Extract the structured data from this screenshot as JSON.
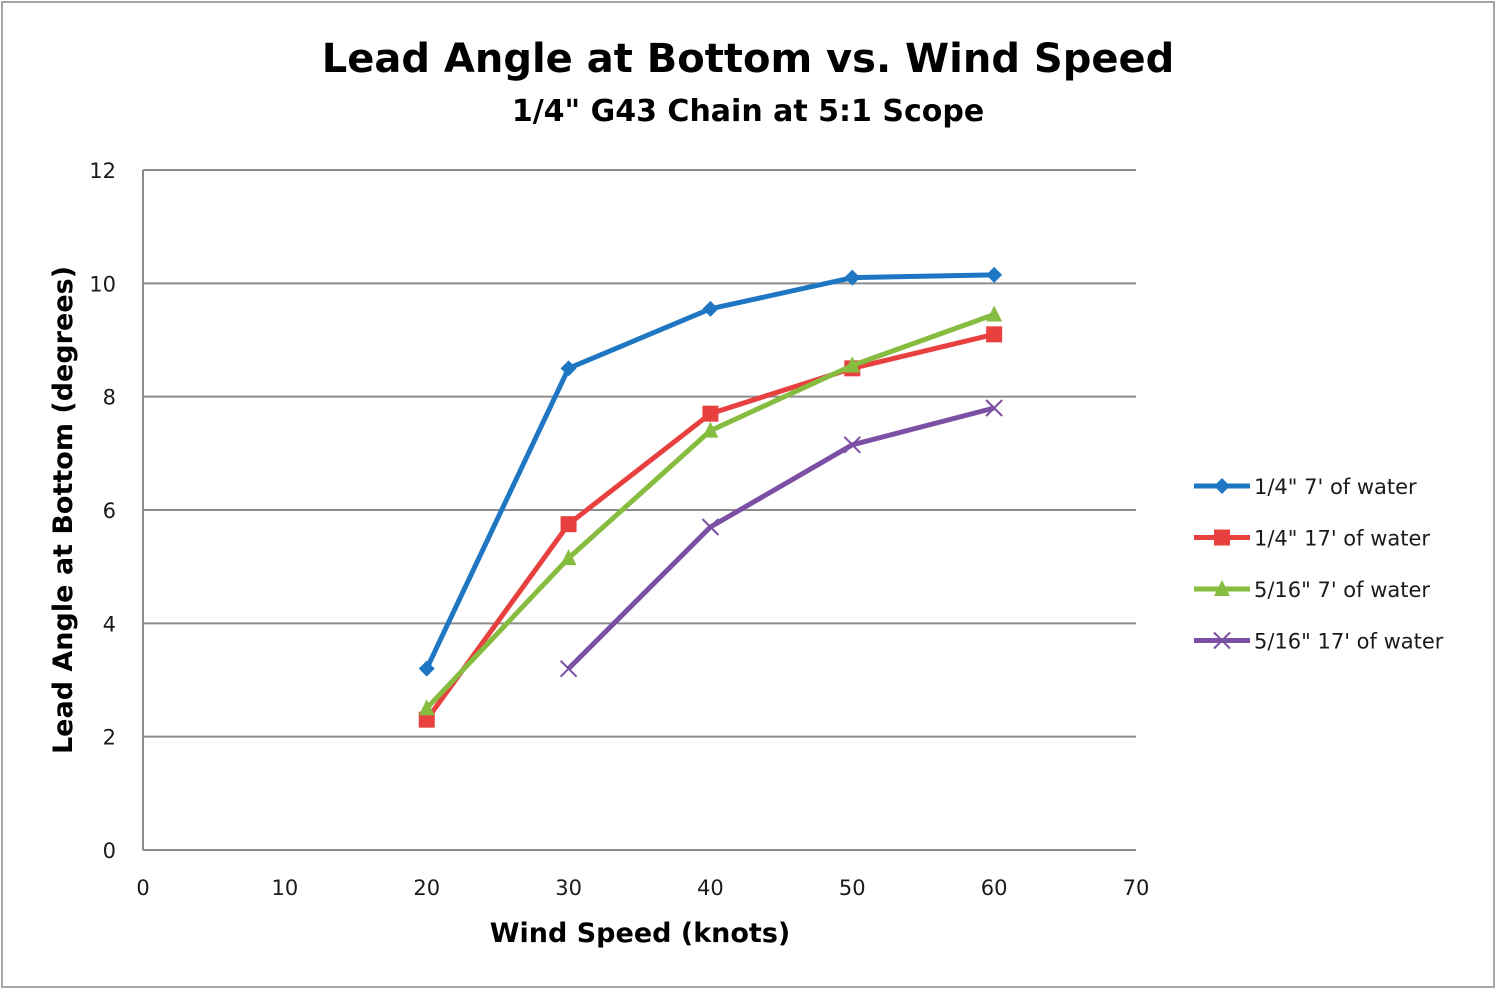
{
  "chart_data": {
    "type": "line",
    "title": "Lead Angle at Bottom vs. Wind Speed",
    "subtitle": "1/4\" G43 Chain at 5:1 Scope",
    "xlabel": "Wind Speed (knots)",
    "ylabel": "Lead Angle at Bottom (degrees)",
    "xlim": [
      0,
      70
    ],
    "ylim": [
      0,
      12
    ],
    "xticks": [
      0,
      10,
      20,
      30,
      40,
      50,
      60,
      70
    ],
    "yticks": [
      0,
      2,
      4,
      6,
      8,
      10,
      12
    ],
    "grid": "horizontal",
    "legend_position": "right",
    "series": [
      {
        "name": "1/4\" 7' of water",
        "color": "#1f77c4",
        "marker": "diamond",
        "x": [
          20,
          30,
          40,
          50,
          60
        ],
        "y": [
          3.2,
          8.5,
          9.55,
          10.1,
          10.15
        ]
      },
      {
        "name": "1/4\" 17' of water",
        "color": "#e8403f",
        "marker": "square",
        "x": [
          20,
          30,
          40,
          50,
          60
        ],
        "y": [
          2.3,
          5.75,
          7.7,
          8.5,
          9.1
        ]
      },
      {
        "name": "5/16\" 7' of water",
        "color": "#86bc3f",
        "marker": "triangle",
        "x": [
          20,
          30,
          40,
          50,
          60
        ],
        "y": [
          2.5,
          5.15,
          7.4,
          8.55,
          9.45
        ]
      },
      {
        "name": "5/16\" 17' of water",
        "color": "#7b4fa3",
        "marker": "x",
        "x": [
          30,
          40,
          50,
          60
        ],
        "y": [
          3.2,
          5.7,
          7.15,
          7.8
        ]
      }
    ]
  }
}
